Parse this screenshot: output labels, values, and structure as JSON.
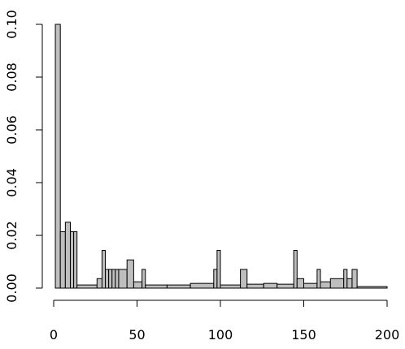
{
  "chart_data": {
    "type": "bar",
    "subtype": "histogram",
    "title": "",
    "xlabel": "",
    "ylabel": "",
    "xlim": [
      0,
      200
    ],
    "ylim": [
      0,
      0.1
    ],
    "xticks": [
      0,
      50,
      100,
      150,
      200
    ],
    "xtick_labels": [
      "0",
      "50",
      "100",
      "150",
      "200"
    ],
    "yticks": [
      0,
      0.02,
      0.04,
      0.06,
      0.08,
      0.1
    ],
    "ytick_labels": [
      "0.00",
      "0.02",
      "0.04",
      "0.06",
      "0.08",
      "0.10"
    ],
    "grid": false,
    "legend": "none",
    "bar_fill": "#bebebe",
    "bar_stroke": "#000000",
    "bins": [
      {
        "x0": 1,
        "x1": 4,
        "y": 0.1
      },
      {
        "x0": 4,
        "x1": 7,
        "y": 0.0214
      },
      {
        "x0": 7,
        "x1": 10,
        "y": 0.025
      },
      {
        "x0": 10,
        "x1": 12,
        "y": 0.0214
      },
      {
        "x0": 12,
        "x1": 14,
        "y": 0.0214
      },
      {
        "x0": 14,
        "x1": 26,
        "y": 0.0012
      },
      {
        "x0": 26,
        "x1": 29,
        "y": 0.0036
      },
      {
        "x0": 29,
        "x1": 31,
        "y": 0.0143
      },
      {
        "x0": 31,
        "x1": 33,
        "y": 0.0071
      },
      {
        "x0": 33,
        "x1": 35,
        "y": 0.0071
      },
      {
        "x0": 35,
        "x1": 37,
        "y": 0.0071
      },
      {
        "x0": 37,
        "x1": 39,
        "y": 0.0071
      },
      {
        "x0": 39,
        "x1": 44,
        "y": 0.0071
      },
      {
        "x0": 44,
        "x1": 48,
        "y": 0.0107
      },
      {
        "x0": 48,
        "x1": 53,
        "y": 0.0024
      },
      {
        "x0": 53,
        "x1": 55,
        "y": 0.0071
      },
      {
        "x0": 55,
        "x1": 68,
        "y": 0.0012
      },
      {
        "x0": 68,
        "x1": 82,
        "y": 0.0012
      },
      {
        "x0": 82,
        "x1": 96,
        "y": 0.0018
      },
      {
        "x0": 96,
        "x1": 98,
        "y": 0.0071
      },
      {
        "x0": 98,
        "x1": 100,
        "y": 0.0143
      },
      {
        "x0": 100,
        "x1": 112,
        "y": 0.0012
      },
      {
        "x0": 112,
        "x1": 116,
        "y": 0.0071
      },
      {
        "x0": 116,
        "x1": 126,
        "y": 0.0015
      },
      {
        "x0": 126,
        "x1": 134,
        "y": 0.0018
      },
      {
        "x0": 134,
        "x1": 144,
        "y": 0.0015
      },
      {
        "x0": 144,
        "x1": 146,
        "y": 0.0143
      },
      {
        "x0": 146,
        "x1": 150,
        "y": 0.0036
      },
      {
        "x0": 150,
        "x1": 158,
        "y": 0.0018
      },
      {
        "x0": 158,
        "x1": 160,
        "y": 0.0071
      },
      {
        "x0": 160,
        "x1": 166,
        "y": 0.0024
      },
      {
        "x0": 166,
        "x1": 174,
        "y": 0.0036
      },
      {
        "x0": 174,
        "x1": 176,
        "y": 0.0071
      },
      {
        "x0": 176,
        "x1": 179,
        "y": 0.0036
      },
      {
        "x0": 179,
        "x1": 182,
        "y": 0.0071
      },
      {
        "x0": 182,
        "x1": 200,
        "y": 0.0006
      }
    ]
  }
}
